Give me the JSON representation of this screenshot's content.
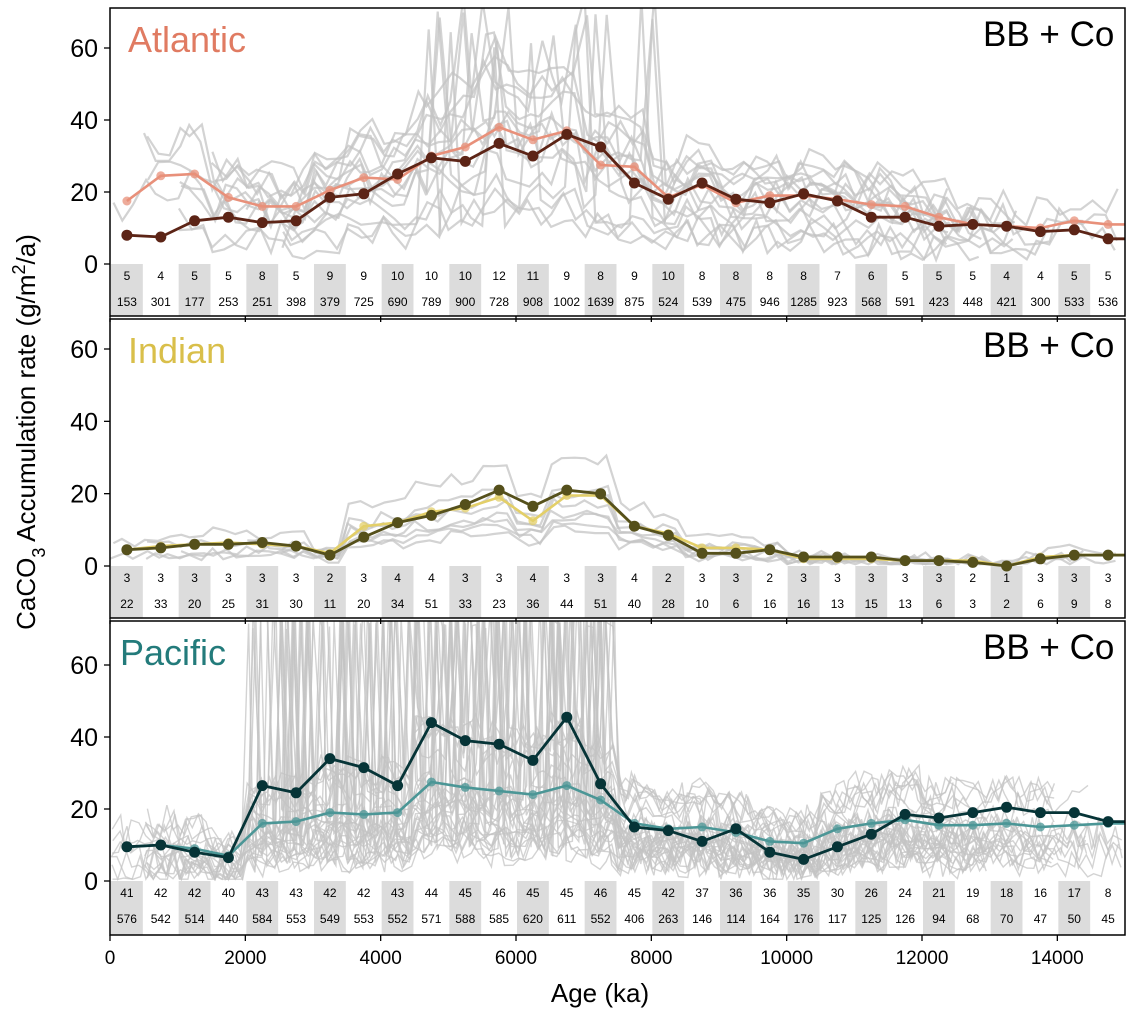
{
  "chart_data": {
    "type": "line",
    "ylabel": "CaCO3 Accumulation rate (g/m2/a)",
    "ylabel_parts": {
      "pre": "CaCO",
      "sub": "3",
      "mid": " Accumulation rate (g/m",
      "sup": "2",
      "post": "/a)"
    },
    "xlabel": "Age (ka)",
    "xlim": [
      0,
      15000
    ],
    "xticks": [
      0,
      2000,
      4000,
      6000,
      8000,
      10000,
      12000,
      14000
    ],
    "ylim": [
      -15,
      70
    ],
    "yticks": [
      0,
      20,
      40,
      60
    ],
    "bin_centers": [
      250,
      750,
      1250,
      1750,
      2250,
      2750,
      3250,
      3750,
      4250,
      4750,
      5250,
      5750,
      6250,
      6750,
      7250,
      7750,
      8250,
      8750,
      9250,
      9750,
      10250,
      10750,
      11250,
      11750,
      12250,
      12750,
      13250,
      13750,
      14250,
      14750
    ],
    "corner_label": "BB + Co",
    "panels": [
      {
        "title": "Atlantic",
        "title_color": "#e07b62",
        "series": [
          {
            "color": "#e8907a",
            "values": [
              17.5,
              24.5,
              25,
              18.5,
              16,
              16,
              20.5,
              24,
              23.5,
              30,
              32.5,
              38,
              34.5,
              37,
              27.5,
              27,
              18.5,
              22,
              17,
              19,
              19,
              18,
              16.5,
              16,
              13,
              11,
              10.5,
              10,
              12,
              11
            ]
          },
          {
            "color": "#5c2416",
            "values": [
              8,
              7.5,
              12,
              13,
              11.5,
              12,
              18.5,
              19.5,
              25,
              29.5,
              28.5,
              33.5,
              30,
              36,
              32.5,
              22.5,
              18,
              22.5,
              18,
              17,
              19.5,
              17.5,
              13,
              13,
              10.5,
              11,
              10.5,
              9,
              9.5,
              7
            ]
          }
        ],
        "counts_top": [
          5,
          4,
          5,
          5,
          8,
          5,
          9,
          9,
          10,
          10,
          10,
          12,
          11,
          9,
          8,
          9,
          10,
          8,
          8,
          8,
          8,
          7,
          6,
          5,
          5,
          5,
          4,
          4,
          5,
          5
        ],
        "counts_bottom": [
          153,
          301,
          177,
          253,
          251,
          398,
          379,
          725,
          690,
          789,
          900,
          728,
          908,
          1002,
          1639,
          875,
          524,
          539,
          475,
          946,
          1285,
          923,
          568,
          591,
          423,
          448,
          421,
          300,
          533,
          536
        ]
      },
      {
        "title": "Indian",
        "title_color": "#d9bf4a",
        "series": [
          {
            "color": "#e3cf68",
            "values": [
              4.5,
              5.5,
              6,
              6.5,
              6,
              5.5,
              3.5,
              11,
              12,
              15,
              16,
              19,
              12.5,
              19.5,
              19.5,
              11,
              9,
              5,
              5,
              4.5,
              2,
              2,
              2,
              1.5,
              1.5,
              1.5,
              0,
              2.5,
              3,
              3
            ]
          },
          {
            "color": "#55501b",
            "values": [
              4.5,
              5,
              6,
              6,
              6.5,
              5.5,
              3,
              8,
              12,
              14,
              17,
              21,
              16.5,
              21,
              20,
              11,
              8.5,
              3.5,
              3.5,
              4.5,
              2.5,
              2.5,
              2.5,
              1.5,
              1.5,
              1,
              0,
              2,
              3,
              3
            ]
          }
        ],
        "counts_top": [
          3,
          3,
          3,
          3,
          3,
          3,
          2,
          3,
          4,
          4,
          3,
          3,
          4,
          3,
          3,
          4,
          2,
          3,
          3,
          2,
          3,
          3,
          3,
          3,
          3,
          2,
          1,
          3,
          3,
          3
        ],
        "counts_bottom": [
          22,
          33,
          20,
          25,
          31,
          30,
          11,
          20,
          34,
          51,
          33,
          23,
          36,
          44,
          51,
          40,
          28,
          10,
          6,
          16,
          16,
          13,
          15,
          13,
          6,
          3,
          2,
          6,
          9,
          8
        ]
      },
      {
        "title": "Pacific",
        "title_color": "#237b7b",
        "series": [
          {
            "color": "#4b9696",
            "values": [
              9.5,
              10,
              9,
              7,
              16,
              16.5,
              19,
              18.5,
              19,
              27.5,
              26,
              25,
              24,
              26.5,
              22.5,
              16,
              14.5,
              15,
              13.5,
              11,
              10.5,
              14.5,
              16,
              17,
              15.5,
              15.5,
              16,
              15,
              15.5,
              16
            ]
          },
          {
            "color": "#063437",
            "values": [
              9.5,
              10,
              8,
              6.5,
              26.5,
              24.5,
              34,
              31.5,
              26.5,
              44,
              39,
              38,
              33.5,
              45.5,
              27,
              15,
              14,
              11,
              14.5,
              8,
              6,
              9.5,
              13,
              18.5,
              17.5,
              19,
              20.5,
              19,
              19,
              16.5
            ]
          }
        ],
        "counts_top": [
          41,
          42,
          42,
          40,
          43,
          43,
          42,
          42,
          43,
          44,
          45,
          46,
          45,
          45,
          46,
          45,
          42,
          37,
          36,
          36,
          35,
          30,
          26,
          24,
          21,
          19,
          18,
          16,
          17,
          8
        ],
        "counts_bottom": [
          576,
          542,
          514,
          440,
          584,
          553,
          549,
          553,
          552,
          571,
          588,
          585,
          620,
          611,
          552,
          406,
          263,
          146,
          114,
          164,
          176,
          117,
          125,
          126,
          94,
          68,
          70,
          47,
          50,
          45
        ]
      }
    ]
  }
}
